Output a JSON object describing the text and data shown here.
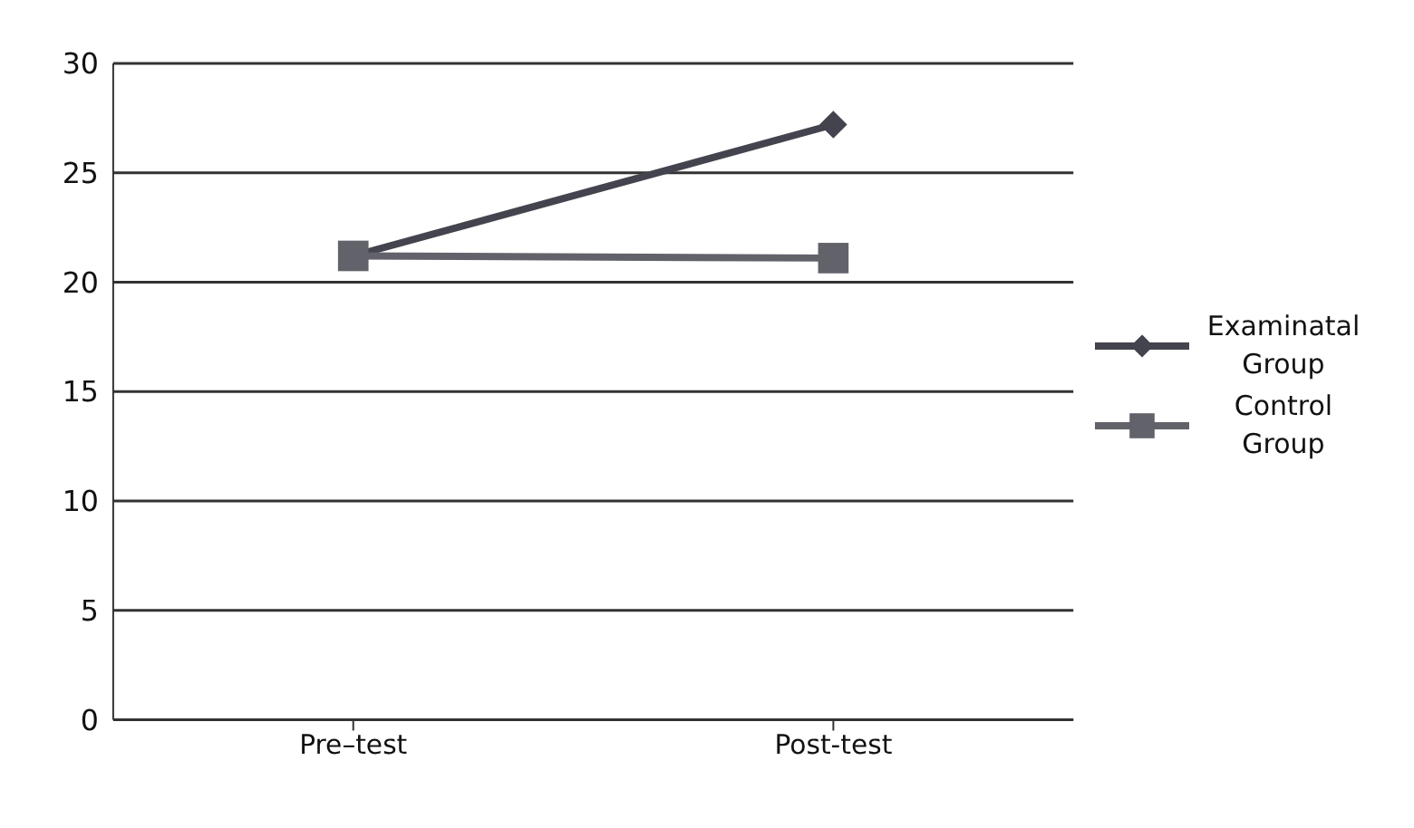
{
  "chart_data": {
    "type": "line",
    "categories": [
      "Pre–test",
      "Post-test"
    ],
    "series": [
      {
        "name": "Examinatal Group",
        "color": "#44444f",
        "values": [
          21.2,
          27.2
        ],
        "marker": "diamond"
      },
      {
        "name": "Control Group",
        "color": "#62626b",
        "values": [
          21.2,
          21.1
        ],
        "marker": "square"
      }
    ],
    "ylim": [
      0,
      30
    ],
    "yticks": [
      0,
      5,
      10,
      15,
      20,
      25,
      30
    ],
    "grid": "y",
    "legend": "right"
  }
}
